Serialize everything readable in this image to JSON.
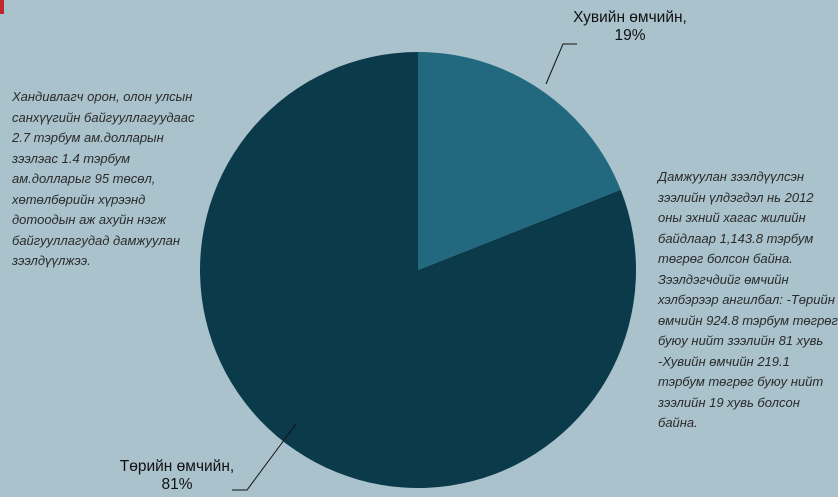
{
  "chart_data": {
    "type": "pie",
    "values": [
      19,
      81
    ],
    "value_labels": [
      "Хувийн өмчийн, 19%",
      "Төрийн өмчийн, 81%"
    ],
    "colors": [
      "#22697f",
      "#0b3a4b"
    ],
    "annotations": [
      "Хандивлагч орон, олон улсын санхүүгийн байгууллагуудаас 2.7 тэрбум ам.долларын зээлэас 1.4 тэрбум ам.долларыг 95 төсөл, хөтөлбөрийн хүрээнд дотоодын аж ахуйн нэгж байгууллагудад дамжуулан зээлдүүлжээ.",
      "Дамжуулан зээлдүүлсэн зээлийн үлдэгдэл нь 2012 оны эхний хагас жилийн байдлаар 1,143.8 тэрбум төгрөг болсон байна. Зээлдэгчдийг өмчийн хэлбэрээр ангилбал: -Төрийн өмчийн 924.8 тэрбум төгрөг буюу нийт зээлийн 81 хувь -Хувийн өмчийн 219.1 тэрбум төгрөг буюу нийт зээлийн 19 хувь болсон байна."
    ]
  }
}
